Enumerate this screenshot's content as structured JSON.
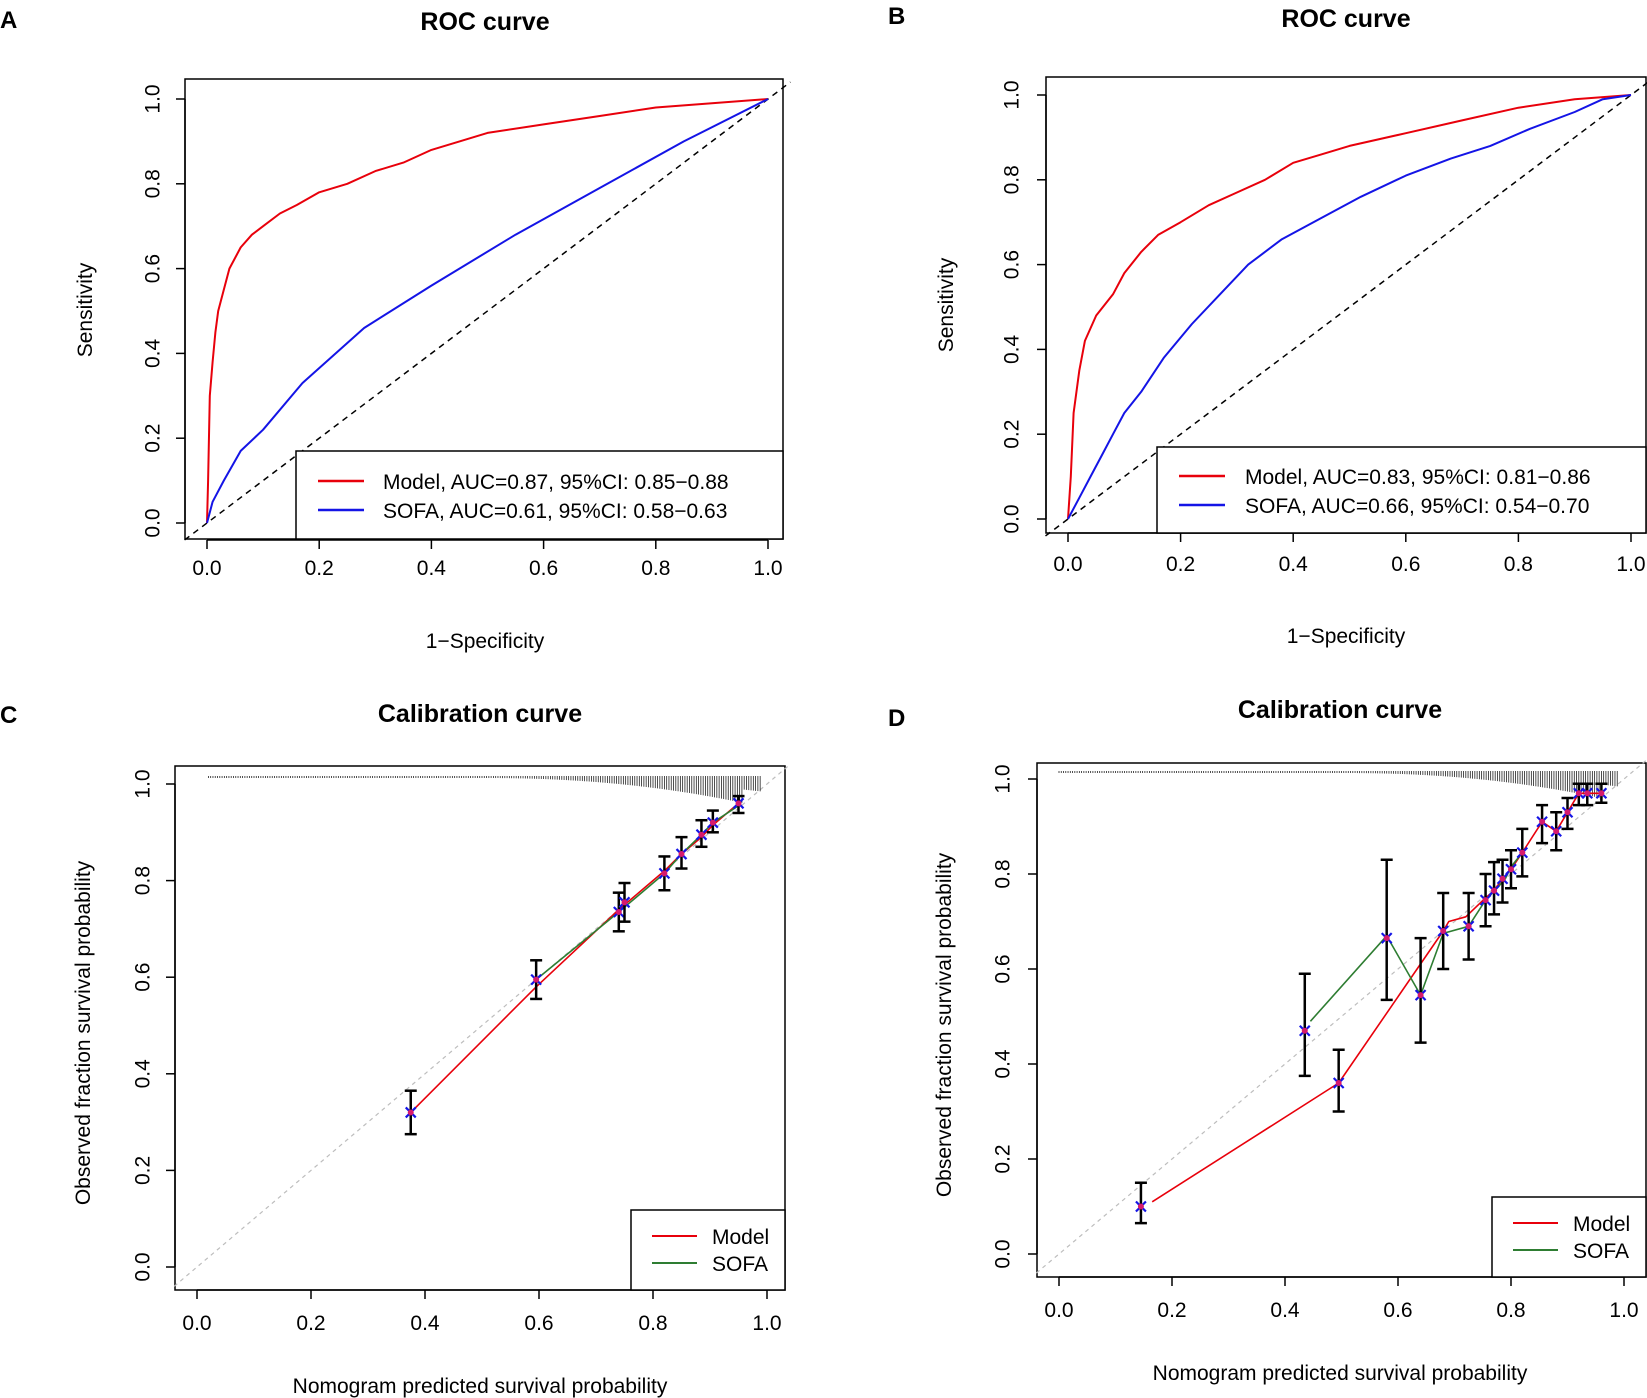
{
  "chart_data": [
    {
      "panel": "A",
      "type": "line",
      "title": "ROC curve",
      "xlabel": "1−Specificity",
      "ylabel": "Sensitivity",
      "xlim": [
        0,
        1
      ],
      "ylim": [
        0,
        1
      ],
      "xticks": [
        "0.0",
        "0.2",
        "0.4",
        "0.6",
        "0.8",
        "1.0"
      ],
      "yticks": [
        "0.0",
        "0.2",
        "0.4",
        "0.6",
        "0.8",
        "1.0"
      ],
      "legend": [
        "Model, AUC=0.87, 95%CI: 0.85−0.88",
        "SOFA, AUC=0.61, 95%CI: 0.58−0.63"
      ],
      "legend_position": "bottom-right",
      "reference_line": "diagonal dashed",
      "series": [
        {
          "name": "Model",
          "color": "#e8000b",
          "points": [
            [
              0,
              0
            ],
            [
              0.002,
              0.1
            ],
            [
              0.005,
              0.3
            ],
            [
              0.01,
              0.38
            ],
            [
              0.015,
              0.45
            ],
            [
              0.02,
              0.5
            ],
            [
              0.03,
              0.55
            ],
            [
              0.04,
              0.6
            ],
            [
              0.06,
              0.65
            ],
            [
              0.08,
              0.68
            ],
            [
              0.1,
              0.7
            ],
            [
              0.13,
              0.73
            ],
            [
              0.16,
              0.75
            ],
            [
              0.2,
              0.78
            ],
            [
              0.25,
              0.8
            ],
            [
              0.3,
              0.83
            ],
            [
              0.35,
              0.85
            ],
            [
              0.4,
              0.88
            ],
            [
              0.45,
              0.9
            ],
            [
              0.5,
              0.92
            ],
            [
              0.6,
              0.94
            ],
            [
              0.7,
              0.96
            ],
            [
              0.8,
              0.98
            ],
            [
              0.9,
              0.99
            ],
            [
              1,
              1
            ]
          ]
        },
        {
          "name": "SOFA",
          "color": "#1414e6",
          "points": [
            [
              0,
              0
            ],
            [
              0.01,
              0.05
            ],
            [
              0.03,
              0.1
            ],
            [
              0.06,
              0.17
            ],
            [
              0.1,
              0.22
            ],
            [
              0.17,
              0.33
            ],
            [
              0.28,
              0.46
            ],
            [
              0.4,
              0.56
            ],
            [
              0.55,
              0.68
            ],
            [
              0.7,
              0.79
            ],
            [
              0.85,
              0.9
            ],
            [
              1,
              1
            ]
          ]
        }
      ]
    },
    {
      "panel": "B",
      "type": "line",
      "title": "ROC curve",
      "xlabel": "1−Specificity",
      "ylabel": "Sensitivity",
      "xlim": [
        0,
        1
      ],
      "ylim": [
        0,
        1
      ],
      "xticks": [
        "0.0",
        "0.2",
        "0.4",
        "0.6",
        "0.8",
        "1.0"
      ],
      "yticks": [
        "0.0",
        "0.2",
        "0.4",
        "0.6",
        "0.8",
        "1.0"
      ],
      "legend": [
        "Model, AUC=0.83, 95%CI: 0.81−0.86",
        "SOFA, AUC=0.66, 95%CI: 0.54−0.70"
      ],
      "legend_position": "bottom-right",
      "reference_line": "diagonal dashed",
      "series": [
        {
          "name": "Model",
          "color": "#e8000b",
          "points": [
            [
              0,
              0
            ],
            [
              0.005,
              0.1
            ],
            [
              0.01,
              0.25
            ],
            [
              0.02,
              0.35
            ],
            [
              0.03,
              0.42
            ],
            [
              0.05,
              0.48
            ],
            [
              0.08,
              0.53
            ],
            [
              0.1,
              0.58
            ],
            [
              0.13,
              0.63
            ],
            [
              0.16,
              0.67
            ],
            [
              0.2,
              0.7
            ],
            [
              0.25,
              0.74
            ],
            [
              0.3,
              0.77
            ],
            [
              0.35,
              0.8
            ],
            [
              0.4,
              0.84
            ],
            [
              0.45,
              0.86
            ],
            [
              0.5,
              0.88
            ],
            [
              0.6,
              0.91
            ],
            [
              0.7,
              0.94
            ],
            [
              0.8,
              0.97
            ],
            [
              0.9,
              0.99
            ],
            [
              1,
              1
            ]
          ]
        },
        {
          "name": "SOFA",
          "color": "#1414e6",
          "points": [
            [
              0,
              0
            ],
            [
              0.02,
              0.05
            ],
            [
              0.04,
              0.1
            ],
            [
              0.06,
              0.15
            ],
            [
              0.08,
              0.2
            ],
            [
              0.1,
              0.25
            ],
            [
              0.13,
              0.3
            ],
            [
              0.17,
              0.38
            ],
            [
              0.22,
              0.46
            ],
            [
              0.27,
              0.53
            ],
            [
              0.32,
              0.6
            ],
            [
              0.38,
              0.66
            ],
            [
              0.45,
              0.71
            ],
            [
              0.52,
              0.76
            ],
            [
              0.6,
              0.81
            ],
            [
              0.68,
              0.85
            ],
            [
              0.75,
              0.88
            ],
            [
              0.82,
              0.92
            ],
            [
              0.9,
              0.96
            ],
            [
              0.95,
              0.99
            ],
            [
              1,
              1
            ]
          ]
        }
      ]
    },
    {
      "panel": "C",
      "type": "line",
      "title": "Calibration curve",
      "xlabel": "Nomogram predicted survival probability",
      "ylabel": "Observed fraction survival probability",
      "xlim": [
        0,
        1
      ],
      "ylim": [
        0,
        1
      ],
      "xticks": [
        "0.0",
        "0.2",
        "0.4",
        "0.6",
        "0.8",
        "1.0"
      ],
      "yticks": [
        "0.0",
        "0.2",
        "0.4",
        "0.6",
        "0.8",
        "1.0"
      ],
      "legend": [
        "Model",
        "SOFA"
      ],
      "legend_position": "bottom-right",
      "reference_line": "diagonal dotted grey",
      "series": [
        {
          "name": "Model",
          "color": "#e8000b",
          "points": [
            [
              0.375,
              0.32
            ],
            [
              0.595,
              0.58
            ],
            [
              0.74,
              0.74
            ],
            [
              0.75,
              0.75
            ],
            [
              0.82,
              0.82
            ],
            [
              0.85,
              0.855
            ],
            [
              0.885,
              0.89
            ],
            [
              0.905,
              0.915
            ],
            [
              0.95,
              0.96
            ]
          ]
        },
        {
          "name": "SOFA",
          "color": "#2e7d32",
          "points": [
            [
              0.595,
              0.595
            ],
            [
              0.74,
              0.735
            ],
            [
              0.75,
              0.745
            ],
            [
              0.82,
              0.815
            ],
            [
              0.85,
              0.855
            ],
            [
              0.885,
              0.895
            ],
            [
              0.905,
              0.92
            ],
            [
              0.95,
              0.955
            ]
          ]
        }
      ],
      "error_bars": [
        {
          "x": 0.375,
          "y": 0.32,
          "lo": 0.275,
          "hi": 0.365
        },
        {
          "x": 0.595,
          "y": 0.595,
          "lo": 0.555,
          "hi": 0.635
        },
        {
          "x": 0.74,
          "y": 0.735,
          "lo": 0.695,
          "hi": 0.775
        },
        {
          "x": 0.75,
          "y": 0.755,
          "lo": 0.715,
          "hi": 0.795
        },
        {
          "x": 0.82,
          "y": 0.815,
          "lo": 0.78,
          "hi": 0.85
        },
        {
          "x": 0.85,
          "y": 0.855,
          "lo": 0.825,
          "hi": 0.89
        },
        {
          "x": 0.885,
          "y": 0.895,
          "lo": 0.87,
          "hi": 0.925
        },
        {
          "x": 0.905,
          "y": 0.92,
          "lo": 0.9,
          "hi": 0.945
        },
        {
          "x": 0.95,
          "y": 0.96,
          "lo": 0.94,
          "hi": 0.975
        }
      ]
    },
    {
      "panel": "D",
      "type": "line",
      "title": "Calibration curve",
      "xlabel": "Nomogram predicted survival probability",
      "ylabel": "Observed fraction survival probability",
      "xlim": [
        0,
        1
      ],
      "ylim": [
        0,
        1
      ],
      "xticks": [
        "0.0",
        "0.2",
        "0.4",
        "0.6",
        "0.8",
        "1.0"
      ],
      "yticks": [
        "0.0",
        "0.2",
        "0.4",
        "0.6",
        "0.8",
        "1.0"
      ],
      "legend": [
        "Model",
        "SOFA"
      ],
      "legend_position": "bottom-right",
      "reference_line": "diagonal dotted grey",
      "series": [
        {
          "name": "Model",
          "color": "#e8000b",
          "points": [
            [
              0.165,
              0.11
            ],
            [
              0.495,
              0.36
            ],
            [
              0.68,
              0.68
            ],
            [
              0.69,
              0.7
            ],
            [
              0.72,
              0.71
            ],
            [
              0.755,
              0.75
            ],
            [
              0.77,
              0.765
            ],
            [
              0.785,
              0.79
            ],
            [
              0.8,
              0.81
            ],
            [
              0.82,
              0.845
            ],
            [
              0.855,
              0.91
            ],
            [
              0.88,
              0.89
            ],
            [
              0.9,
              0.93
            ],
            [
              0.92,
              0.97
            ],
            [
              0.935,
              0.97
            ],
            [
              0.96,
              0.97
            ]
          ]
        },
        {
          "name": "SOFA",
          "color": "#2e7d32",
          "points": [
            [
              0.445,
              0.49
            ],
            [
              0.58,
              0.67
            ],
            [
              0.64,
              0.545
            ],
            [
              0.68,
              0.675
            ],
            [
              0.725,
              0.69
            ],
            [
              0.755,
              0.745
            ],
            [
              0.775,
              0.77
            ],
            [
              0.79,
              0.79
            ],
            [
              0.8,
              0.815
            ],
            [
              0.82,
              0.845
            ]
          ]
        }
      ],
      "error_bars": [
        {
          "x": 0.145,
          "y": 0.1,
          "lo": 0.065,
          "hi": 0.15
        },
        {
          "x": 0.435,
          "y": 0.47,
          "lo": 0.375,
          "hi": 0.59
        },
        {
          "x": 0.495,
          "y": 0.36,
          "lo": 0.3,
          "hi": 0.43
        },
        {
          "x": 0.58,
          "y": 0.665,
          "lo": 0.535,
          "hi": 0.83
        },
        {
          "x": 0.64,
          "y": 0.545,
          "lo": 0.445,
          "hi": 0.665
        },
        {
          "x": 0.68,
          "y": 0.68,
          "lo": 0.6,
          "hi": 0.76
        },
        {
          "x": 0.725,
          "y": 0.69,
          "lo": 0.62,
          "hi": 0.76
        },
        {
          "x": 0.755,
          "y": 0.745,
          "lo": 0.69,
          "hi": 0.8
        },
        {
          "x": 0.77,
          "y": 0.765,
          "lo": 0.715,
          "hi": 0.825
        },
        {
          "x": 0.785,
          "y": 0.79,
          "lo": 0.74,
          "hi": 0.83
        },
        {
          "x": 0.8,
          "y": 0.81,
          "lo": 0.77,
          "hi": 0.85
        },
        {
          "x": 0.82,
          "y": 0.845,
          "lo": 0.795,
          "hi": 0.895
        },
        {
          "x": 0.855,
          "y": 0.91,
          "lo": 0.865,
          "hi": 0.945
        },
        {
          "x": 0.88,
          "y": 0.89,
          "lo": 0.85,
          "hi": 0.93
        },
        {
          "x": 0.9,
          "y": 0.93,
          "lo": 0.895,
          "hi": 0.96
        },
        {
          "x": 0.92,
          "y": 0.97,
          "lo": 0.945,
          "hi": 0.99
        },
        {
          "x": 0.935,
          "y": 0.97,
          "lo": 0.945,
          "hi": 0.99
        },
        {
          "x": 0.96,
          "y": 0.97,
          "lo": 0.95,
          "hi": 0.99
        }
      ]
    }
  ]
}
